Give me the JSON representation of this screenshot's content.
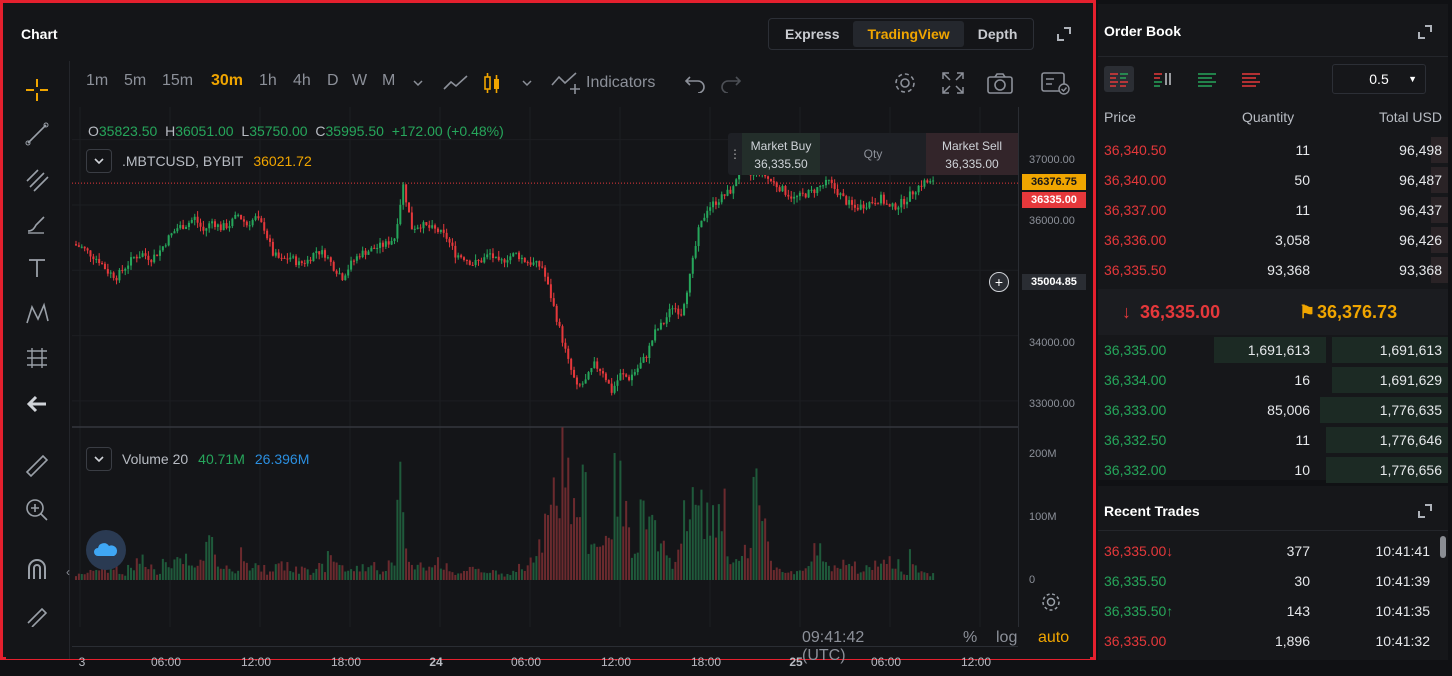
{
  "chart": {
    "title": "Chart",
    "tabs": [
      "Express",
      "TradingView",
      "Depth"
    ],
    "active_tab": "TradingView",
    "timeframes": [
      "1m",
      "5m",
      "15m",
      "30m",
      "1h",
      "4h",
      "D",
      "W",
      "M"
    ],
    "active_timeframe": "30m",
    "indicators_label": "Indicators",
    "ohlc": {
      "o_label": "O",
      "o": "35823.50",
      "h_label": "H",
      "h": "36051.00",
      "l_label": "L",
      "l": "35750.00",
      "c_label": "C",
      "c": "35995.50",
      "change": "+172.00 (+0.48%)"
    },
    "symbol": ".MBTCUSD, BYBIT",
    "last_price": "36021.72",
    "volume_label": "Volume 20",
    "volume_value1": "40.71M",
    "volume_value2": "26.396M",
    "trade_widget": {
      "buy_label": "Market Buy",
      "buy_price": "36,335.50",
      "qty_label": "Qty",
      "sell_label": "Market Sell",
      "sell_price": "36,335.00"
    },
    "price_ticks": [
      "37000.00",
      "36000.00",
      "34000.00",
      "33000.00"
    ],
    "volume_ticks": [
      "200M",
      "100M",
      "0"
    ],
    "tags": {
      "orange": "36376.75",
      "red": "36335.00",
      "crosshair": "35004.85"
    },
    "time_labels": [
      "3",
      "06:00",
      "12:00",
      "18:00",
      "24",
      "06:00",
      "12:00",
      "18:00",
      "25",
      "06:00",
      "12:00"
    ],
    "clock": "09:41:42 (UTC)",
    "scale_options": [
      "%",
      "log",
      "auto"
    ],
    "colors": {
      "up": "#26a65b",
      "down": "#e5383b",
      "accent": "#f0a500"
    }
  },
  "chart_data": {
    "type": "candlestick",
    "price_ylim": [
      32600,
      37500
    ],
    "volume_ylim": [
      0,
      230
    ],
    "close_path": [
      35400,
      35350,
      35250,
      35150,
      34980,
      34900,
      35050,
      35200,
      35250,
      35180,
      35300,
      35500,
      35650,
      35700,
      35800,
      35600,
      35750,
      35650,
      35700,
      35850,
      35700,
      35800,
      35650,
      35250,
      35150,
      35200,
      35100,
      35150,
      35300,
      35250,
      35050,
      34900,
      35100,
      35250,
      35300,
      35350,
      35400,
      35500,
      36300,
      35650,
      35700,
      35650,
      35600,
      35500,
      35250,
      35200,
      35100,
      35150,
      35250,
      35100,
      35200,
      35250,
      35150,
      35100,
      35050,
      34600,
      34100,
      33600,
      33200,
      33300,
      33550,
      33450,
      33150,
      33400,
      33350,
      33500,
      33700,
      34050,
      34200,
      34450,
      34350,
      34900,
      35600,
      35950,
      36050,
      36150,
      36250,
      36750,
      36450,
      36550,
      36400,
      36300,
      36200,
      36100,
      36150,
      36200,
      36280,
      36350,
      36200,
      36050,
      35950,
      36000,
      36050,
      36100,
      35950,
      36000,
      36100,
      36250,
      36350,
      36335
    ],
    "volume_path": [
      8,
      12,
      20,
      15,
      25,
      10,
      18,
      30,
      22,
      14,
      35,
      28,
      40,
      18,
      25,
      60,
      30,
      20,
      15,
      45,
      25,
      18,
      12,
      30,
      22,
      16,
      26,
      14,
      20,
      35,
      28,
      15,
      18,
      22,
      24,
      12,
      30,
      165,
      40,
      25,
      18,
      28,
      22,
      12,
      15,
      20,
      18,
      10,
      14,
      8,
      12,
      20,
      40,
      60,
      90,
      140,
      215,
      110,
      140,
      70,
      55,
      90,
      150,
      100,
      60,
      120,
      80,
      50,
      30,
      45,
      130,
      115,
      110,
      90,
      120,
      40,
      30,
      45,
      150,
      80,
      25,
      18,
      12,
      15,
      30,
      45,
      25,
      18,
      30,
      22,
      15,
      20,
      35,
      30,
      25,
      12,
      40,
      15,
      10,
      5
    ]
  },
  "order_book": {
    "title": "Order Book",
    "depth": "0.5",
    "columns": [
      "Price",
      "Quantity",
      "Total USD"
    ],
    "asks": [
      {
        "price": "36,340.50",
        "qty": "11",
        "total": "96,498",
        "bar": 0.12
      },
      {
        "price": "36,340.00",
        "qty": "50",
        "total": "96,487",
        "bar": 0.12
      },
      {
        "price": "36,337.00",
        "qty": "11",
        "total": "96,437",
        "bar": 0.12
      },
      {
        "price": "36,336.00",
        "qty": "3,058",
        "total": "96,426",
        "bar": 0.12
      },
      {
        "price": "36,335.50",
        "qty": "93,368",
        "total": "93,368",
        "bar": 0.12
      }
    ],
    "mid_price": "36,335.00",
    "mark_price": "36,376.73",
    "bids": [
      {
        "price": "36,335.00",
        "qty": "1,691,613",
        "total": "1,691,613",
        "qbar": 0.95,
        "bar": 0.95
      },
      {
        "price": "36,334.00",
        "qty": "16",
        "total": "1,691,629",
        "qbar": 0,
        "bar": 0.95
      },
      {
        "price": "36,333.00",
        "qty": "85,006",
        "total": "1,776,635",
        "qbar": 0.05,
        "bar": 1
      },
      {
        "price": "36,332.50",
        "qty": "11",
        "total": "1,776,646",
        "qbar": 0,
        "bar": 1
      },
      {
        "price": "36,332.00",
        "qty": "10",
        "total": "1,776,656",
        "qbar": 0,
        "bar": 1
      }
    ]
  },
  "recent_trades": {
    "title": "Recent Trades",
    "rows": [
      {
        "price": "36,335.00",
        "side": "sell",
        "arrow": "down",
        "qty": "377",
        "time": "10:41:41"
      },
      {
        "price": "36,335.50",
        "side": "buy",
        "arrow": "",
        "qty": "30",
        "time": "10:41:39"
      },
      {
        "price": "36,335.50",
        "side": "buy",
        "arrow": "up",
        "qty": "143",
        "time": "10:41:35"
      },
      {
        "price": "36,335.00",
        "side": "sell",
        "arrow": "",
        "qty": "1,896",
        "time": "10:41:32"
      }
    ]
  }
}
